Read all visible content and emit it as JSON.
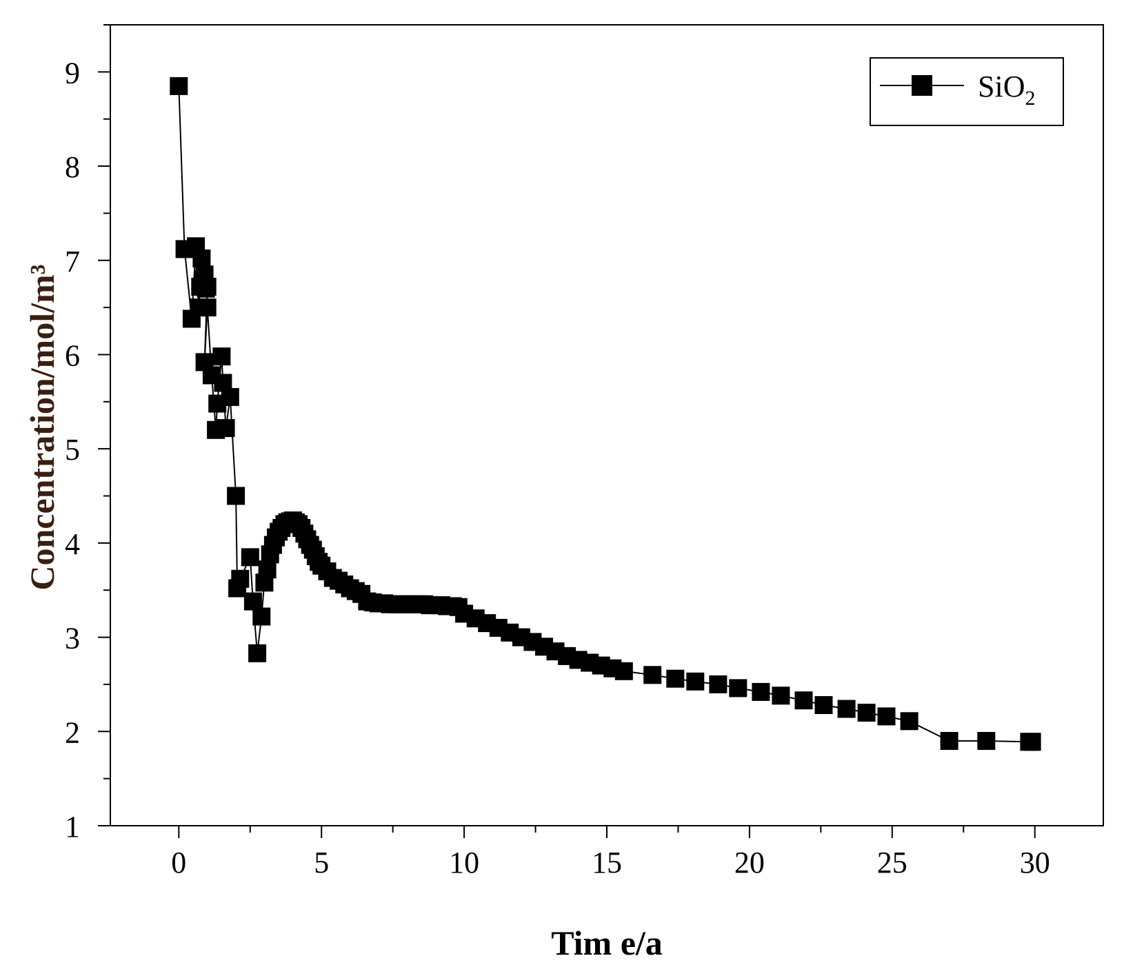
{
  "chart_data": {
    "type": "line",
    "title": "",
    "xlabel": "Tim e/a",
    "ylabel": "Concentration/mol/m³",
    "xlim": [
      -2.4,
      32.4
    ],
    "ylim": [
      1,
      9.5
    ],
    "xticks": [
      0,
      5,
      10,
      15,
      20,
      25,
      30
    ],
    "yticks": [
      1,
      2,
      3,
      4,
      5,
      6,
      7,
      8,
      9
    ],
    "xtick_labels": [
      "0",
      "5",
      "10",
      "15",
      "20",
      "25",
      "30"
    ],
    "ytick_labels": [
      "1",
      "2",
      "3",
      "4",
      "5",
      "6",
      "7",
      "8",
      "9"
    ],
    "legend": {
      "position": "top-right",
      "label_main": "SiO",
      "label_sub": "2"
    },
    "series": [
      {
        "name": "SiO2",
        "marker": "square",
        "color": "#000000",
        "x": [
          0,
          0.2,
          0.45,
          0.6,
          0.7,
          0.75,
          0.8,
          0.85,
          0.9,
          0.95,
          1.0,
          0.9,
          1.0,
          1.15,
          1.3,
          1.35,
          1.5,
          1.55,
          1.65,
          1.8,
          2.0,
          2.05,
          2.15,
          2.5,
          2.6,
          2.75,
          2.9,
          3.0,
          3.1,
          3.2,
          3.3,
          3.4,
          3.5,
          3.6,
          3.7,
          3.8,
          3.9,
          4.0,
          4.1,
          4.2,
          4.3,
          4.4,
          4.5,
          4.6,
          4.7,
          4.8,
          4.9,
          5.0,
          5.2,
          5.4,
          5.6,
          5.8,
          6.0,
          6.2,
          6.4,
          6.6,
          6.8,
          7.0,
          7.2,
          7.4,
          7.6,
          7.8,
          8.0,
          8.2,
          8.4,
          8.6,
          8.8,
          9.0,
          9.2,
          9.4,
          9.6,
          9.8,
          10.0,
          10.4,
          10.8,
          11.2,
          11.6,
          12.0,
          12.4,
          12.8,
          13.2,
          13.6,
          14.0,
          14.4,
          14.8,
          15.2,
          15.6,
          16.6,
          17.4,
          18.1,
          18.9,
          19.6,
          20.4,
          21.1,
          21.9,
          22.6,
          23.4,
          24.1,
          24.8,
          25.6,
          27.0,
          28.3,
          29.8,
          29.9
        ],
        "y": [
          8.85,
          7.12,
          6.38,
          7.15,
          6.5,
          6.72,
          7.02,
          6.8,
          6.85,
          6.7,
          6.72,
          5.92,
          6.5,
          5.78,
          5.2,
          5.48,
          5.98,
          5.7,
          5.22,
          5.55,
          4.5,
          3.52,
          3.62,
          3.85,
          3.38,
          2.83,
          3.22,
          3.58,
          3.72,
          3.88,
          3.98,
          4.06,
          4.12,
          4.16,
          4.2,
          4.22,
          4.23,
          4.24,
          4.22,
          4.2,
          4.16,
          4.1,
          4.04,
          3.98,
          3.93,
          3.86,
          3.8,
          3.76,
          3.7,
          3.63,
          3.6,
          3.56,
          3.52,
          3.49,
          3.46,
          3.38,
          3.37,
          3.36,
          3.36,
          3.35,
          3.35,
          3.35,
          3.35,
          3.35,
          3.35,
          3.35,
          3.34,
          3.34,
          3.34,
          3.33,
          3.33,
          3.32,
          3.25,
          3.2,
          3.15,
          3.1,
          3.05,
          3.0,
          2.95,
          2.9,
          2.85,
          2.8,
          2.76,
          2.73,
          2.7,
          2.67,
          2.64,
          2.6,
          2.56,
          2.53,
          2.5,
          2.46,
          2.42,
          2.38,
          2.33,
          2.28,
          2.24,
          2.2,
          2.16,
          2.11,
          1.9,
          1.9,
          1.89,
          1.89
        ]
      }
    ]
  }
}
